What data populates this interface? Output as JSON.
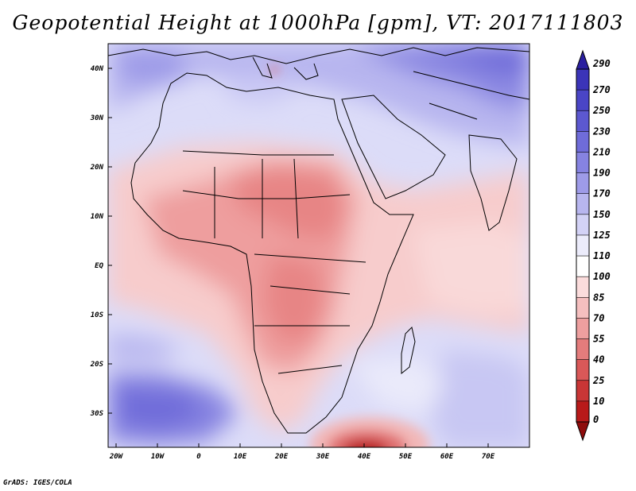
{
  "title": "Geopotential Height at 1000hPa [gpm], VT: 2017111803",
  "footer": "GrADS: IGES/COLA",
  "lat_ticks": [
    "40N",
    "30N",
    "20N",
    "10N",
    "EQ",
    "10S",
    "20S",
    "30S"
  ],
  "lon_ticks": [
    "20W",
    "10W",
    "0",
    "10E",
    "20E",
    "30E",
    "40E",
    "50E",
    "60E",
    "70E"
  ],
  "colorbar": {
    "labels": [
      "290",
      "270",
      "250",
      "230",
      "210",
      "190",
      "170",
      "150",
      "125",
      "110",
      "100",
      "85",
      "70",
      "55",
      "40",
      "25",
      "10",
      "0"
    ],
    "colors": [
      "#2a1f9f",
      "#3b34b8",
      "#4a45c6",
      "#5c58d0",
      "#6f6cd9",
      "#8683e1",
      "#9e9be8",
      "#b8b6ef",
      "#d3d2f6",
      "#ececfb",
      "#ffffff",
      "#fbdcdc",
      "#f5bfbf",
      "#ed9f9f",
      "#e47c7c",
      "#d95858",
      "#c93636",
      "#b81a1a",
      "#8e0c0c"
    ]
  },
  "chart_data": {
    "type": "heatmap",
    "variable": "Geopotential Height at 1000hPa",
    "units": "gpm",
    "valid_time": "2017111803",
    "lon_range": [
      -20,
      80
    ],
    "lat_range": [
      -35,
      45
    ],
    "levels": [
      0,
      10,
      25,
      40,
      55,
      70,
      85,
      100,
      110,
      125,
      150,
      170,
      190,
      210,
      230,
      250,
      270,
      290
    ]
  }
}
